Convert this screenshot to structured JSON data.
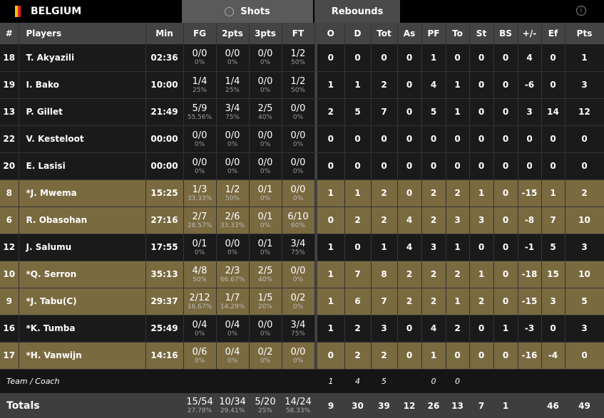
{
  "team": {
    "name": "BELGIUM",
    "flag_colors": [
      "#000000",
      "#f5c400",
      "#e3202a"
    ]
  },
  "tabs": {
    "shots": "Shots",
    "rebounds": "Rebounds",
    "info_icon": "i"
  },
  "headers": [
    "#",
    "Players",
    "Min",
    "FG",
    "2pts",
    "3pts",
    "FT",
    "O",
    "D",
    "Tot",
    "As",
    "PF",
    "To",
    "St",
    "BS",
    "+/-",
    "Ef",
    "Pts"
  ],
  "colors": {
    "starter_row": "#7a6a40",
    "row": "#1a1a1a",
    "header": "#444444"
  },
  "players": [
    {
      "no": "18",
      "name": "T. Akyazili",
      "starter": false,
      "min": "02:36",
      "fg": [
        "0/0",
        "0%"
      ],
      "p2": [
        "0/0",
        "0%"
      ],
      "p3": [
        "0/0",
        "0%"
      ],
      "ft": [
        "1/2",
        "50%"
      ],
      "stats": [
        "0",
        "0",
        "0",
        "0",
        "1",
        "0",
        "0",
        "0",
        "4",
        "0",
        "1"
      ]
    },
    {
      "no": "19",
      "name": "I. Bako",
      "starter": false,
      "min": "10:00",
      "fg": [
        "1/4",
        "25%"
      ],
      "p2": [
        "1/4",
        "25%"
      ],
      "p3": [
        "0/0",
        "0%"
      ],
      "ft": [
        "1/2",
        "50%"
      ],
      "stats": [
        "1",
        "1",
        "2",
        "0",
        "4",
        "1",
        "0",
        "0",
        "-6",
        "0",
        "3"
      ]
    },
    {
      "no": "13",
      "name": "P. Gillet",
      "starter": false,
      "min": "21:49",
      "fg": [
        "5/9",
        "55.56%"
      ],
      "p2": [
        "3/4",
        "75%"
      ],
      "p3": [
        "2/5",
        "40%"
      ],
      "ft": [
        "0/0",
        "0%"
      ],
      "stats": [
        "2",
        "5",
        "7",
        "0",
        "5",
        "1",
        "0",
        "0",
        "3",
        "14",
        "12"
      ]
    },
    {
      "no": "22",
      "name": "V. Kesteloot",
      "starter": false,
      "min": "00:00",
      "fg": [
        "0/0",
        "0%"
      ],
      "p2": [
        "0/0",
        "0%"
      ],
      "p3": [
        "0/0",
        "0%"
      ],
      "ft": [
        "0/0",
        "0%"
      ],
      "stats": [
        "0",
        "0",
        "0",
        "0",
        "0",
        "0",
        "0",
        "0",
        "0",
        "0",
        "0"
      ]
    },
    {
      "no": "20",
      "name": "E. Lasisi",
      "starter": false,
      "min": "00:00",
      "fg": [
        "0/0",
        "0%"
      ],
      "p2": [
        "0/0",
        "0%"
      ],
      "p3": [
        "0/0",
        "0%"
      ],
      "ft": [
        "0/0",
        "0%"
      ],
      "stats": [
        "0",
        "0",
        "0",
        "0",
        "0",
        "0",
        "0",
        "0",
        "0",
        "0",
        "0"
      ]
    },
    {
      "no": "8",
      "name": "*J. Mwema",
      "starter": true,
      "min": "15:25",
      "fg": [
        "1/3",
        "33.33%"
      ],
      "p2": [
        "1/2",
        "50%"
      ],
      "p3": [
        "0/1",
        "0%"
      ],
      "ft": [
        "0/0",
        "0%"
      ],
      "stats": [
        "1",
        "1",
        "2",
        "0",
        "2",
        "2",
        "1",
        "0",
        "-15",
        "1",
        "2"
      ]
    },
    {
      "no": "6",
      "name": "R. Obasohan",
      "starter": true,
      "min": "27:16",
      "fg": [
        "2/7",
        "28.57%"
      ],
      "p2": [
        "2/6",
        "33.33%"
      ],
      "p3": [
        "0/1",
        "0%"
      ],
      "ft": [
        "6/10",
        "60%"
      ],
      "stats": [
        "0",
        "2",
        "2",
        "4",
        "2",
        "3",
        "3",
        "0",
        "-8",
        "7",
        "10"
      ]
    },
    {
      "no": "12",
      "name": "J. Salumu",
      "starter": false,
      "min": "17:55",
      "fg": [
        "0/1",
        "0%"
      ],
      "p2": [
        "0/0",
        "0%"
      ],
      "p3": [
        "0/1",
        "0%"
      ],
      "ft": [
        "3/4",
        "75%"
      ],
      "stats": [
        "1",
        "0",
        "1",
        "4",
        "3",
        "1",
        "0",
        "0",
        "-1",
        "5",
        "3"
      ]
    },
    {
      "no": "10",
      "name": "*Q. Serron",
      "starter": true,
      "min": "35:13",
      "fg": [
        "4/8",
        "50%"
      ],
      "p2": [
        "2/3",
        "66.67%"
      ],
      "p3": [
        "2/5",
        "40%"
      ],
      "ft": [
        "0/0",
        "0%"
      ],
      "stats": [
        "1",
        "7",
        "8",
        "2",
        "2",
        "2",
        "1",
        "0",
        "-18",
        "15",
        "10"
      ]
    },
    {
      "no": "9",
      "name": "*J. Tabu(C)",
      "starter": true,
      "min": "29:37",
      "fg": [
        "2/12",
        "16.67%"
      ],
      "p2": [
        "1/7",
        "14.29%"
      ],
      "p3": [
        "1/5",
        "20%"
      ],
      "ft": [
        "0/2",
        "0%"
      ],
      "stats": [
        "1",
        "6",
        "7",
        "2",
        "2",
        "1",
        "2",
        "0",
        "-15",
        "3",
        "5"
      ]
    },
    {
      "no": "16",
      "name": "*K. Tumba",
      "starter": false,
      "min": "25:49",
      "fg": [
        "0/4",
        "0%"
      ],
      "p2": [
        "0/4",
        "0%"
      ],
      "p3": [
        "0/0",
        "0%"
      ],
      "ft": [
        "3/4",
        "75%"
      ],
      "stats": [
        "1",
        "2",
        "3",
        "0",
        "4",
        "2",
        "0",
        "1",
        "-3",
        "0",
        "3"
      ]
    },
    {
      "no": "17",
      "name": "*H. Vanwijn",
      "starter": true,
      "min": "14:16",
      "fg": [
        "0/6",
        "0%"
      ],
      "p2": [
        "0/4",
        "0%"
      ],
      "p3": [
        "0/2",
        "0%"
      ],
      "ft": [
        "0/0",
        "0%"
      ],
      "stats": [
        "0",
        "2",
        "2",
        "0",
        "1",
        "0",
        "0",
        "0",
        "-16",
        "-4",
        "0"
      ]
    }
  ],
  "coach": {
    "label": "Team / Coach",
    "stats": [
      "1",
      "4",
      "5",
      "",
      "0",
      "0",
      "",
      "",
      "",
      "",
      ""
    ]
  },
  "totals": {
    "label": "Totals",
    "fg": [
      "15/54",
      "27.78%"
    ],
    "p2": [
      "10/34",
      "29.41%"
    ],
    "p3": [
      "5/20",
      "25%"
    ],
    "ft": [
      "14/24",
      "58.33%"
    ],
    "stats": [
      "9",
      "30",
      "39",
      "12",
      "26",
      "13",
      "7",
      "1",
      "",
      "46",
      "49"
    ]
  }
}
